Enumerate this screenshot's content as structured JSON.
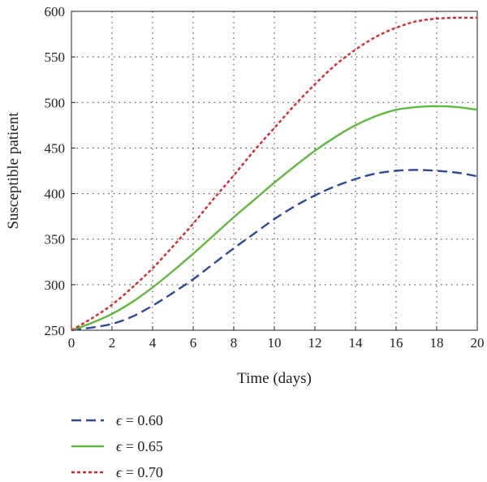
{
  "chart_data": {
    "type": "line",
    "xlabel": "Time (days)",
    "ylabel": "Susceptible patient",
    "xlim": [
      0,
      20
    ],
    "ylim": [
      250,
      600
    ],
    "xticks": [
      "0",
      "2",
      "4",
      "6",
      "8",
      "10",
      "12",
      "14",
      "16",
      "18",
      "20"
    ],
    "yticks": [
      "250",
      "300",
      "350",
      "400",
      "450",
      "500",
      "550",
      "600"
    ],
    "grid": true,
    "grid_style": "dotted",
    "legend_position": "bottom-left-below",
    "x": [
      0,
      1,
      2,
      3,
      4,
      5,
      6,
      7,
      8,
      9,
      10,
      11,
      12,
      13,
      14,
      15,
      16,
      17,
      18,
      19,
      20
    ],
    "series": [
      {
        "name": "ϵ = 0.60",
        "symbol": "ϵ",
        "value_text": " = 0.60",
        "color": "#2b4a9e",
        "dash": "dashed",
        "values": [
          250,
          253,
          257,
          265,
          277,
          291,
          306,
          323,
          340,
          356,
          372,
          386,
          398,
          408,
          416,
          422,
          425,
          426,
          425,
          423,
          419
        ]
      },
      {
        "name": "ϵ = 0.65",
        "symbol": "ϵ",
        "value_text": " = 0.65",
        "color": "#5dbb3c",
        "dash": "solid",
        "values": [
          250,
          258,
          268,
          281,
          297,
          315,
          334,
          354,
          374,
          393,
          412,
          430,
          447,
          462,
          475,
          485,
          492,
          495,
          496,
          495,
          492
        ]
      },
      {
        "name": "ϵ = 0.70",
        "symbol": "ϵ",
        "value_text": " = 0.70",
        "color": "#e8202a",
        "dash": "dotted",
        "values": [
          250,
          263,
          278,
          297,
          318,
          342,
          367,
          394,
          420,
          447,
          472,
          497,
          520,
          541,
          558,
          572,
          582,
          589,
          592,
          593,
          593
        ]
      }
    ]
  }
}
